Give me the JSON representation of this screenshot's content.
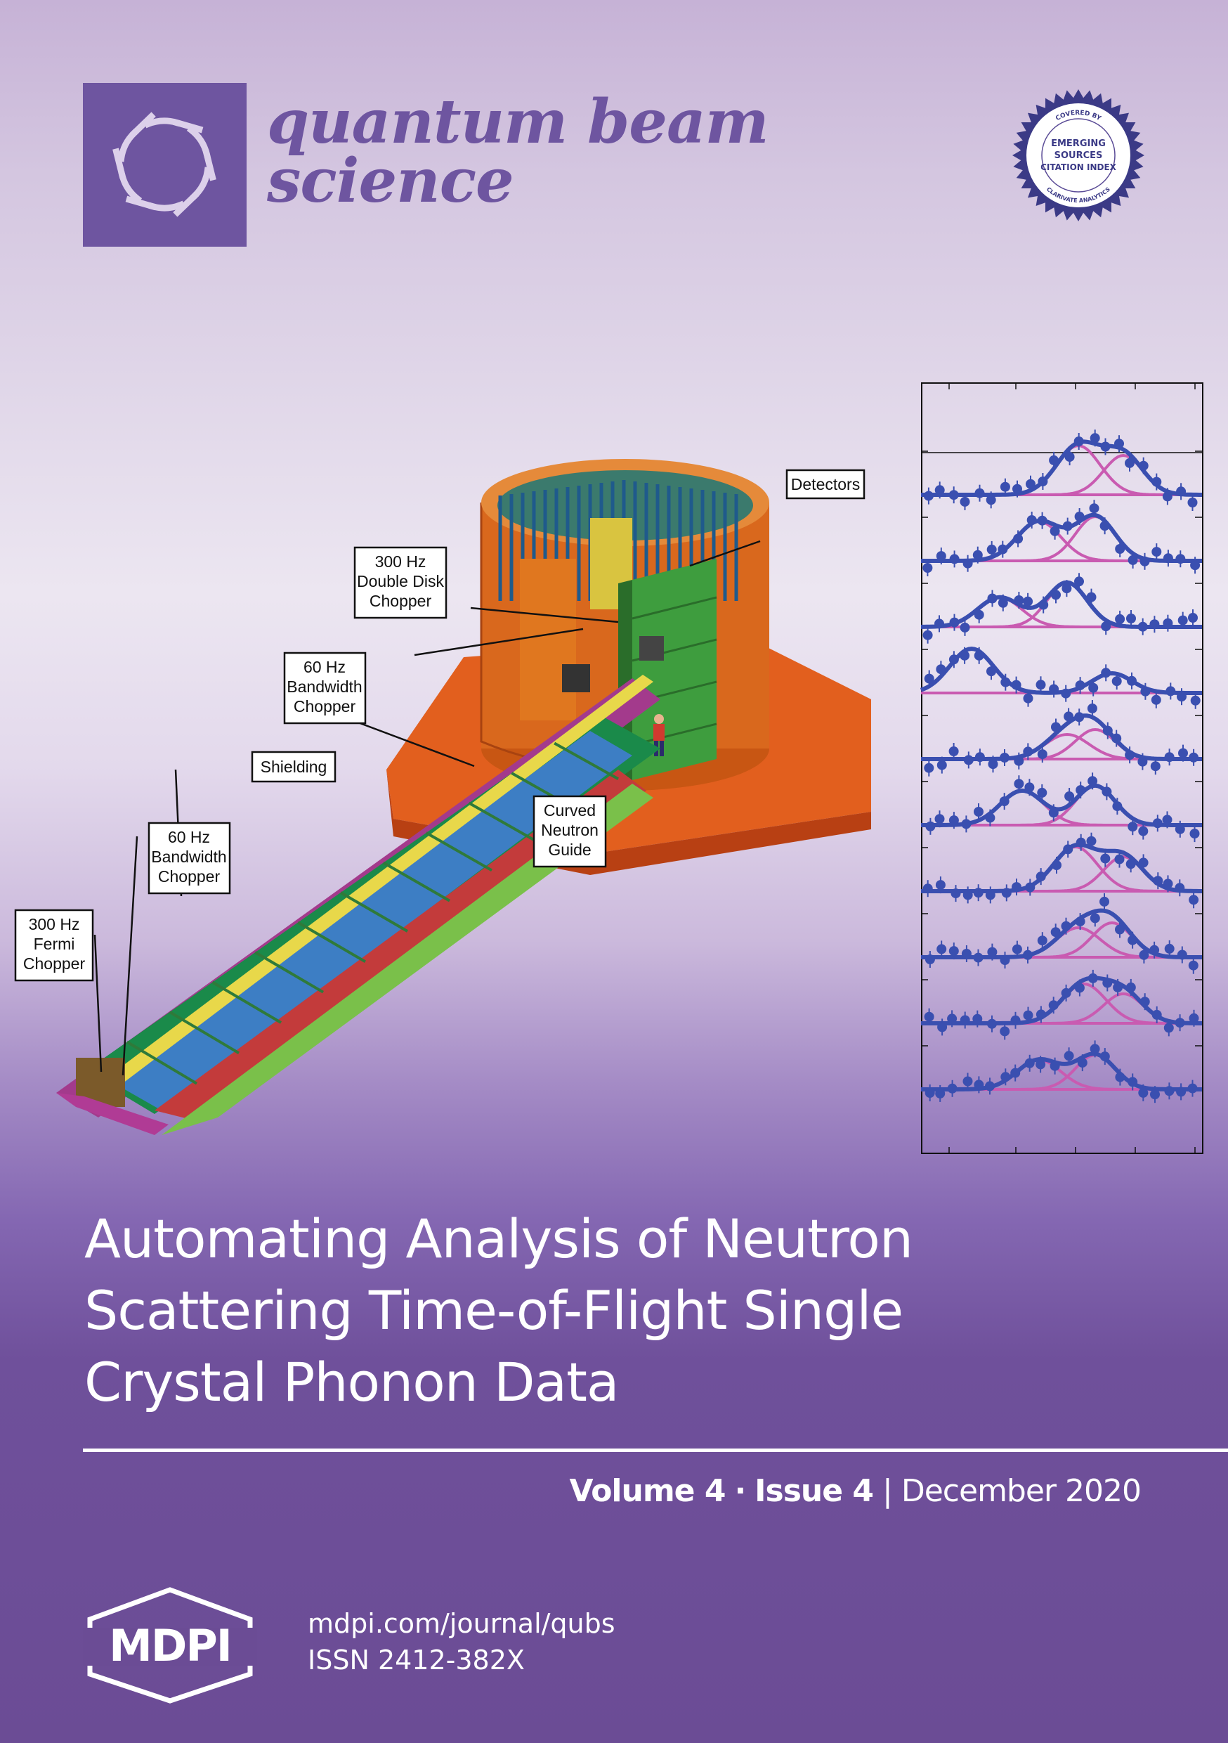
{
  "journal": {
    "title_line1": "quantum beam",
    "title_line2": "science",
    "brand_color": "#6e55a0"
  },
  "badge": {
    "top_text": "COVERED BY",
    "line1": "EMERGING",
    "line2": "SOURCES",
    "line3": "CITATION INDEX",
    "bottom_text": "CLARIVATE ANALYTICS"
  },
  "figure": {
    "labels": {
      "detectors": "Detectors",
      "double_disk_chopper": [
        "300 Hz",
        "Double Disk",
        "Chopper"
      ],
      "bandwidth_chopper_upper": [
        "60 Hz",
        "Bandwidth",
        "Chopper"
      ],
      "shielding": "Shielding",
      "curved_neutron_guide": [
        "Curved",
        "Neutron",
        "Guide"
      ],
      "bandwidth_chopper_lower": [
        "60 Hz",
        "Bandwidth",
        "Chopper"
      ],
      "fermi_chopper": [
        "300 Hz",
        "Fermi",
        "Chopper"
      ]
    },
    "peak_fit_colors": {
      "data": "#3a4fb0",
      "components": "#c95bb1"
    }
  },
  "article": {
    "title_line1": "Automating Analysis of Neutron",
    "title_line2": "Scattering Time-of-Flight Single",
    "title_line3": "Crystal Phonon Data"
  },
  "issue": {
    "volume": "Volume 4",
    "separator": "·",
    "issue": "Issue 4",
    "divider": "|",
    "date": "December 2020"
  },
  "publisher": {
    "name": "MDPI",
    "url": "mdpi.com/journal/qubs",
    "issn": "ISSN 2412-382X"
  }
}
